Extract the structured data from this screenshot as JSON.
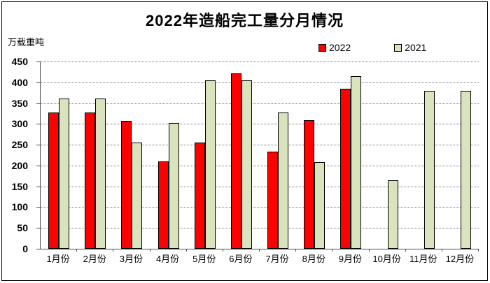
{
  "frame": {
    "background": "#ffffff",
    "border_color": "#000000"
  },
  "chart_data": {
    "type": "bar",
    "title": "2022年造船完工量分月情况",
    "ylabel": "万载重吨",
    "categories": [
      "1月份",
      "2月份",
      "3月份",
      "4月份",
      "5月份",
      "6月份",
      "7月份",
      "8月份",
      "9月份",
      "10月份",
      "11月份",
      "12月份"
    ],
    "series": [
      {
        "name": "2022",
        "color": "#ff0000",
        "values": [
          327,
          327,
          308,
          210,
          256,
          421,
          234,
          309,
          385,
          null,
          null,
          null
        ]
      },
      {
        "name": "2021",
        "color": "#d9e3bd",
        "values": [
          361,
          361,
          255,
          302,
          405,
          405,
          327,
          208,
          414,
          165,
          380,
          380
        ]
      }
    ],
    "ylim": [
      0,
      450
    ],
    "ytick_step": 50,
    "y_tick_labels": [
      "450",
      "400",
      "350",
      "300",
      "250",
      "200",
      "150",
      "100",
      "50",
      "0"
    ],
    "grid": "horizontal dotted",
    "legend_position": "top-right above plot",
    "gridline_color": "#767676",
    "axis_color": "#4d4d4d",
    "bar_border_color": "#000000"
  }
}
